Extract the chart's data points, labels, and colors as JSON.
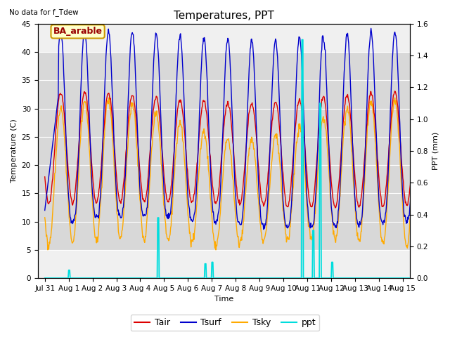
{
  "title": "Temperatures, PPT",
  "subtitle": "No data for f_Tdew",
  "xlabel": "Time",
  "ylabel_left": "Temperature (C)",
  "ylabel_right": "PPT (mm)",
  "legend_labels": [
    "Tair",
    "Tsurf",
    "Tsky",
    "ppt"
  ],
  "legend_colors": [
    "#dd0000",
    "#0000cc",
    "#ffaa00",
    "#00dddd"
  ],
  "annotation_text": "BA_arable",
  "xlim_days": [
    -0.3,
    15.3
  ],
  "ylim_left": [
    0,
    45
  ],
  "ylim_right": [
    0,
    1.6
  ],
  "yticks_left": [
    0,
    5,
    10,
    15,
    20,
    25,
    30,
    35,
    40,
    45
  ],
  "yticks_right": [
    0.0,
    0.2,
    0.4,
    0.6,
    0.8,
    1.0,
    1.2,
    1.4,
    1.6
  ],
  "xtick_labels": [
    "Jul 31",
    "Aug 1",
    "Aug 2",
    "Aug 3",
    "Aug 4",
    "Aug 5",
    "Aug 6",
    "Aug 7",
    "Aug 8",
    "Aug 9",
    "Aug 10",
    "Aug 11",
    "Aug 12",
    "Aug 13",
    "Aug 14",
    "Aug 15"
  ],
  "xtick_positions": [
    0,
    1,
    2,
    3,
    4,
    5,
    6,
    7,
    8,
    9,
    10,
    11,
    12,
    13,
    14,
    15
  ],
  "shade_ymin": 5,
  "shade_ymax": 40,
  "bg_color": "#f0f0f0",
  "shade_color": "#d8d8d8",
  "fig_bg": "#ffffff",
  "grid_color": "#ffffff",
  "title_fontsize": 11,
  "label_fontsize": 8,
  "tick_fontsize": 7.5,
  "ann_fontsize": 9,
  "legend_fontsize": 9
}
